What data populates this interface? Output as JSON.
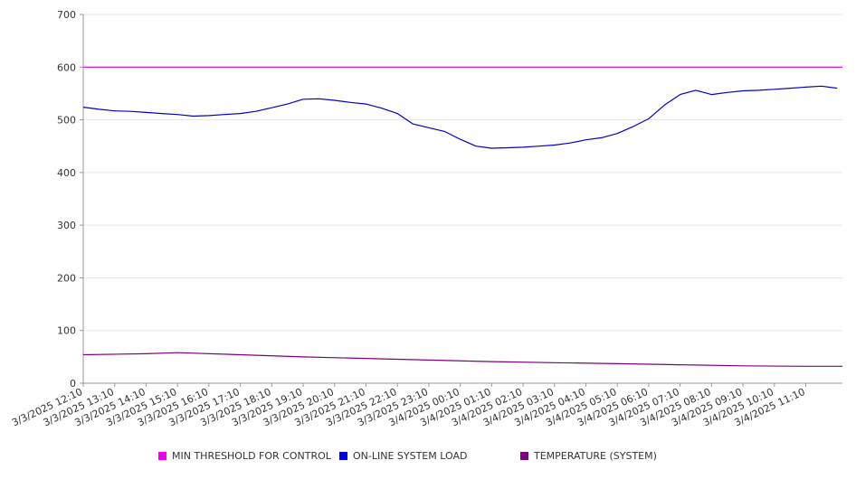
{
  "chart_data": {
    "type": "line",
    "ylim": [
      0,
      700
    ],
    "yticks": [
      0,
      100,
      200,
      300,
      400,
      500,
      600,
      700
    ],
    "ytick_labels": [
      "0",
      "100",
      "200",
      "300",
      "400",
      "500",
      "600",
      "700"
    ],
    "xlim": [
      "3/3/2025 12:10",
      "3/4/2025 12:20"
    ],
    "xtick_labels": [
      "3/3/2025 12:10",
      "3/3/2025 13:10",
      "3/3/2025 14:10",
      "3/3/2025 15:10",
      "3/3/2025 16:10",
      "3/3/2025 17:10",
      "3/3/2025 18:10",
      "3/3/2025 19:10",
      "3/3/2025 20:10",
      "3/3/2025 21:10",
      "3/3/2025 22:10",
      "3/3/2025 23:10",
      "3/4/2025 00:10",
      "3/4/2025 01:10",
      "3/4/2025 02:10",
      "3/4/2025 03:10",
      "3/4/2025 04:10",
      "3/4/2025 05:10",
      "3/4/2025 06:10",
      "3/4/2025 07:10",
      "3/4/2025 08:10",
      "3/4/2025 09:10",
      "3/4/2025 10:10",
      "3/4/2025 11:10"
    ],
    "grid": true,
    "legend_position": "bottom",
    "series": [
      {
        "name": "MIN THRESHOLD FOR CONTROL",
        "color": "#cc00cc",
        "x": [
          "3/3/2025 12:10",
          "3/4/2025 12:20"
        ],
        "y": [
          600,
          600
        ]
      },
      {
        "name": "ON-LINE SYSTEM LOAD",
        "color": "#0000cc",
        "x": [
          "3/3/2025 12:10",
          "3/3/2025 12:40",
          "3/3/2025 13:10",
          "3/3/2025 13:40",
          "3/3/2025 14:10",
          "3/3/2025 14:40",
          "3/3/2025 15:10",
          "3/3/2025 15:40",
          "3/3/2025 16:10",
          "3/3/2025 16:40",
          "3/3/2025 17:10",
          "3/3/2025 17:40",
          "3/3/2025 18:10",
          "3/3/2025 18:40",
          "3/3/2025 19:10",
          "3/3/2025 19:40",
          "3/3/2025 20:10",
          "3/3/2025 20:40",
          "3/3/2025 21:10",
          "3/3/2025 21:40",
          "3/3/2025 22:10",
          "3/3/2025 22:40",
          "3/3/2025 23:10",
          "3/3/2025 23:40",
          "3/4/2025 00:10",
          "3/4/2025 00:40",
          "3/4/2025 01:10",
          "3/4/2025 01:40",
          "3/4/2025 02:10",
          "3/4/2025 02:40",
          "3/4/2025 03:10",
          "3/4/2025 03:40",
          "3/4/2025 04:10",
          "3/4/2025 04:40",
          "3/4/2025 05:10",
          "3/4/2025 05:40",
          "3/4/2025 06:10",
          "3/4/2025 06:40",
          "3/4/2025 07:10",
          "3/4/2025 07:40",
          "3/4/2025 08:10",
          "3/4/2025 08:40",
          "3/4/2025 09:10",
          "3/4/2025 09:40",
          "3/4/2025 10:10",
          "3/4/2025 10:40",
          "3/4/2025 11:10",
          "3/4/2025 11:40",
          "3/4/2025 12:10"
        ],
        "y": [
          524,
          520,
          517,
          516,
          514,
          512,
          510,
          507,
          508,
          510,
          512,
          516,
          523,
          530,
          539,
          540,
          537,
          533,
          530,
          522,
          512,
          492,
          485,
          478,
          463,
          450,
          446,
          447,
          448,
          450,
          452,
          456,
          462,
          466,
          474,
          487,
          502,
          528,
          548,
          556,
          548,
          552,
          555,
          556,
          558,
          560,
          562,
          564,
          560
        ]
      },
      {
        "name": "TEMPERATURE (SYSTEM)",
        "color": "#800080",
        "x": [
          "3/3/2025 12:10",
          "3/3/2025 14:10",
          "3/3/2025 15:10",
          "3/3/2025 17:10",
          "3/3/2025 19:10",
          "3/3/2025 21:10",
          "3/3/2025 23:10",
          "3/4/2025 01:10",
          "3/4/2025 03:10",
          "3/4/2025 05:10",
          "3/4/2025 07:10",
          "3/4/2025 09:10",
          "3/4/2025 11:10",
          "3/4/2025 12:20"
        ],
        "y": [
          54,
          56,
          58,
          54,
          50,
          47,
          44,
          41,
          39,
          37,
          35,
          33,
          32,
          32
        ]
      }
    ]
  }
}
